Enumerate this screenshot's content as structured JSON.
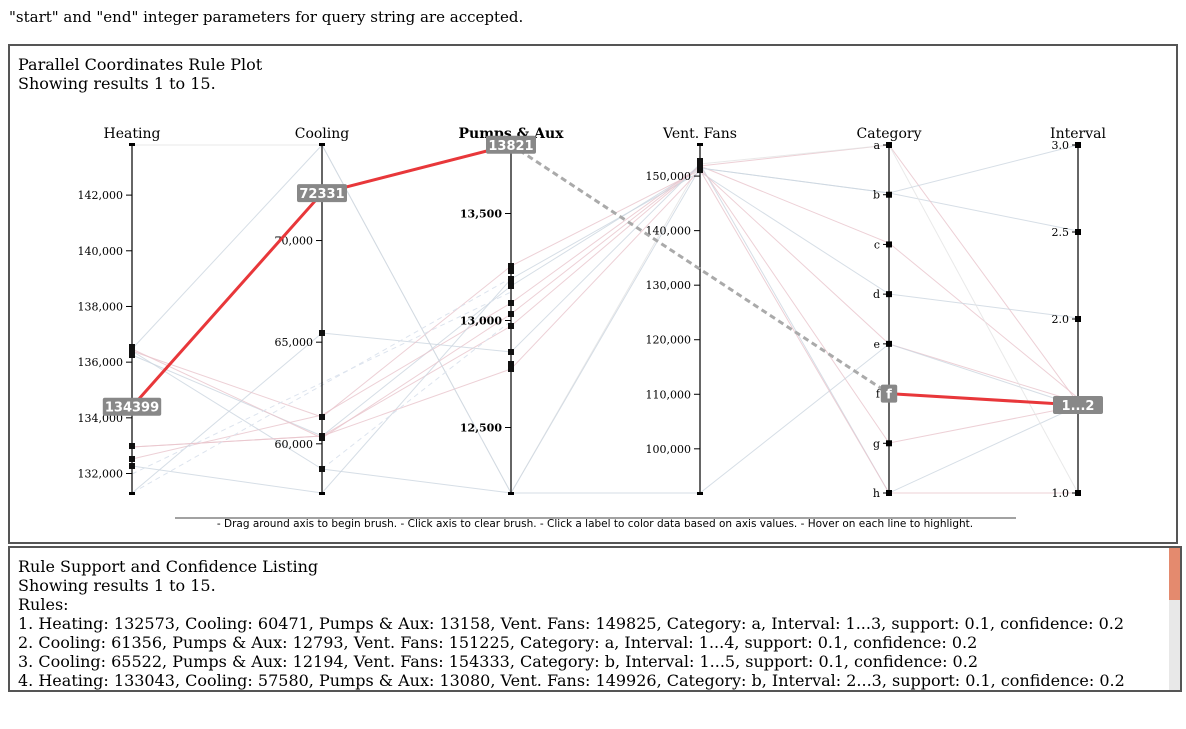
{
  "note": "\"start\" and \"end\" integer parameters for query string are accepted.",
  "plot": {
    "title": "Parallel Coordinates Rule Plot",
    "subtitle": "Showing results 1 to 15.",
    "instructions": "- Drag around axis to begin brush. - Click axis to clear brush. - Click a label to color data based on axis values. - Hover on each line to highlight."
  },
  "chart_data": {
    "type": "parallel-coordinates",
    "axes": [
      {
        "name": "Heating",
        "ticks": [
          "142,000",
          "140,000",
          "138,000",
          "136,000",
          "134,000",
          "132,000"
        ],
        "tick_values": [
          142000,
          140000,
          138000,
          136000,
          134000,
          132000
        ],
        "range": [
          131300,
          143800
        ],
        "bold": false
      },
      {
        "name": "Cooling",
        "ticks": [
          "70,000",
          "65,000",
          "60,000"
        ],
        "tick_values": [
          70000,
          65000,
          60000
        ],
        "range": [
          57580,
          74700
        ],
        "bold": false
      },
      {
        "name": "Pumps & Aux",
        "ticks": [
          "13,500",
          "13,000",
          "12,500"
        ],
        "tick_values": [
          13500,
          13000,
          12500
        ],
        "range": [
          12194,
          13820
        ],
        "bold": true
      },
      {
        "name": "Vent. Fans",
        "ticks": [
          "150,000",
          "140,000",
          "130,000",
          "120,000",
          "110,000",
          "100,000"
        ],
        "tick_values": [
          150000,
          140000,
          130000,
          120000,
          110000,
          100000
        ],
        "range": [
          91900,
          155700
        ],
        "bold": false
      },
      {
        "name": "Category",
        "ticks": [
          "a",
          "b",
          "c",
          "d",
          "e",
          "f",
          "g",
          "h"
        ],
        "categorical": true,
        "bold": false
      },
      {
        "name": "Interval",
        "ticks": [
          "3.0",
          "2.5",
          "2.0",
          "1.0"
        ],
        "tick_values": [
          3.0,
          2.5,
          2.0,
          1.0
        ],
        "range": [
          1.0,
          3.0
        ],
        "bold": false
      }
    ],
    "highlight": {
      "values": [
        134399,
        72331,
        13821,
        null,
        "f",
        null
      ],
      "labels": [
        "134399",
        "72331",
        "13821",
        "",
        "f",
        "1...2"
      ]
    }
  },
  "rules": {
    "title": "Rule Support and Confidence Listing",
    "subtitle": "Showing results 1 to 15.",
    "label": "Rules:",
    "items": [
      "1. Heating: 132573, Cooling: 60471, Pumps & Aux: 13158, Vent. Fans: 149825, Category: a, Interval: 1...3, support: 0.1, confidence: 0.2",
      "2. Cooling: 61356, Pumps & Aux: 12793, Vent. Fans: 151225, Category: a, Interval: 1...4, support: 0.1, confidence: 0.2",
      "3. Cooling: 65522, Pumps & Aux: 12194, Vent. Fans: 154333, Category: b, Interval: 1...5, support: 0.1, confidence: 0.2",
      "4. Heating: 133043, Cooling: 57580, Pumps & Aux: 13080, Vent. Fans: 149926, Category: b, Interval: 2...3, support: 0.1, confidence: 0.2"
    ]
  }
}
